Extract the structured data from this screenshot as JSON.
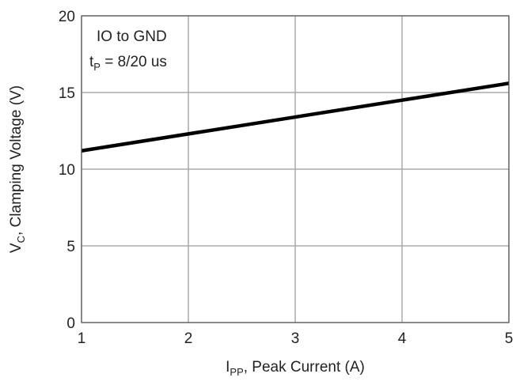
{
  "chart_data": {
    "type": "line",
    "title": "",
    "xlabel": {
      "main": "I",
      "sub": "PP",
      "rest": ", Peak Current (A)"
    },
    "ylabel": {
      "main": "V",
      "sub": "C",
      "rest": ", Clamping Voltage (V)"
    },
    "xlim": [
      1,
      5
    ],
    "ylim": [
      0,
      20
    ],
    "xticks": [
      1,
      2,
      3,
      4,
      5
    ],
    "yticks": [
      0,
      5,
      10,
      15,
      20
    ],
    "grid": true,
    "annotations": [
      {
        "text": "IO to GND"
      },
      {
        "main": "t",
        "sub": "P",
        "rest": " = 8/20 us"
      }
    ],
    "series": [
      {
        "color": "#000000",
        "x": [
          1,
          2,
          3,
          4,
          5
        ],
        "y": [
          11.2,
          12.3,
          13.4,
          14.5,
          15.6
        ]
      }
    ]
  }
}
